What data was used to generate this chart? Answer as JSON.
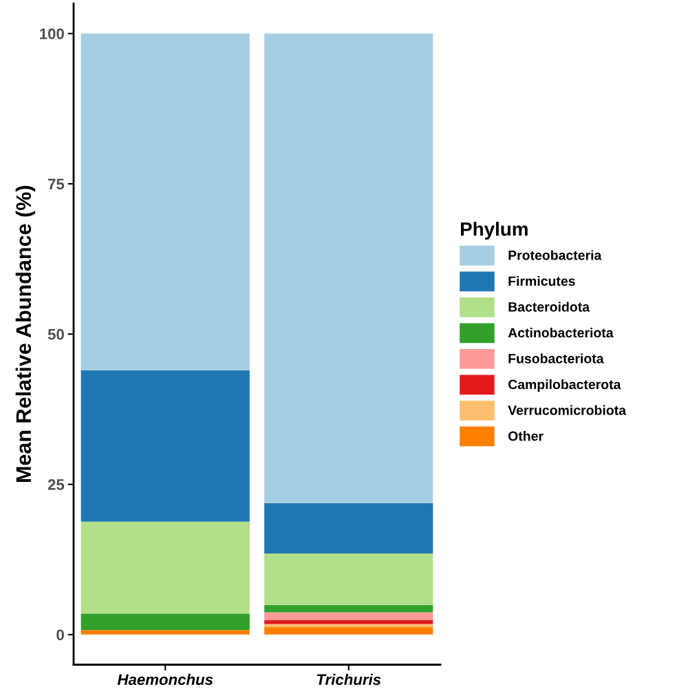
{
  "chart_data": {
    "type": "bar",
    "stacked": true,
    "ylabel": "Mean Relative Abundance (%)",
    "legend_title": "Phylum",
    "legend": "right",
    "categories": [
      "Haemonchus",
      "Trichuris"
    ],
    "ylim": [
      -5,
      105
    ],
    "yticks": [
      0,
      25,
      50,
      75,
      100
    ],
    "grid": false,
    "series": [
      {
        "name": "Other",
        "color": "#ff7f00",
        "values": [
          0.75,
          1.3
        ]
      },
      {
        "name": "Verrucomicrobiota",
        "color": "#fdbf6f",
        "values": [
          0,
          0.45
        ]
      },
      {
        "name": "Campilobacterota",
        "color": "#e31a1c",
        "values": [
          0,
          0.7
        ]
      },
      {
        "name": "Fusobacteriota",
        "color": "#fb9a99",
        "values": [
          0,
          1.25
        ]
      },
      {
        "name": "Actinobacteriota",
        "color": "#33a02c",
        "values": [
          2.75,
          1.25
        ]
      },
      {
        "name": "Bacteroidota",
        "color": "#b2df8a",
        "values": [
          15.3,
          8.55
        ]
      },
      {
        "name": "Firmicutes",
        "color": "#1f78b4",
        "values": [
          25.2,
          8.4
        ]
      },
      {
        "name": "Proteobacteria",
        "color": "#a6cee3",
        "values": [
          56,
          78.1
        ]
      }
    ]
  }
}
